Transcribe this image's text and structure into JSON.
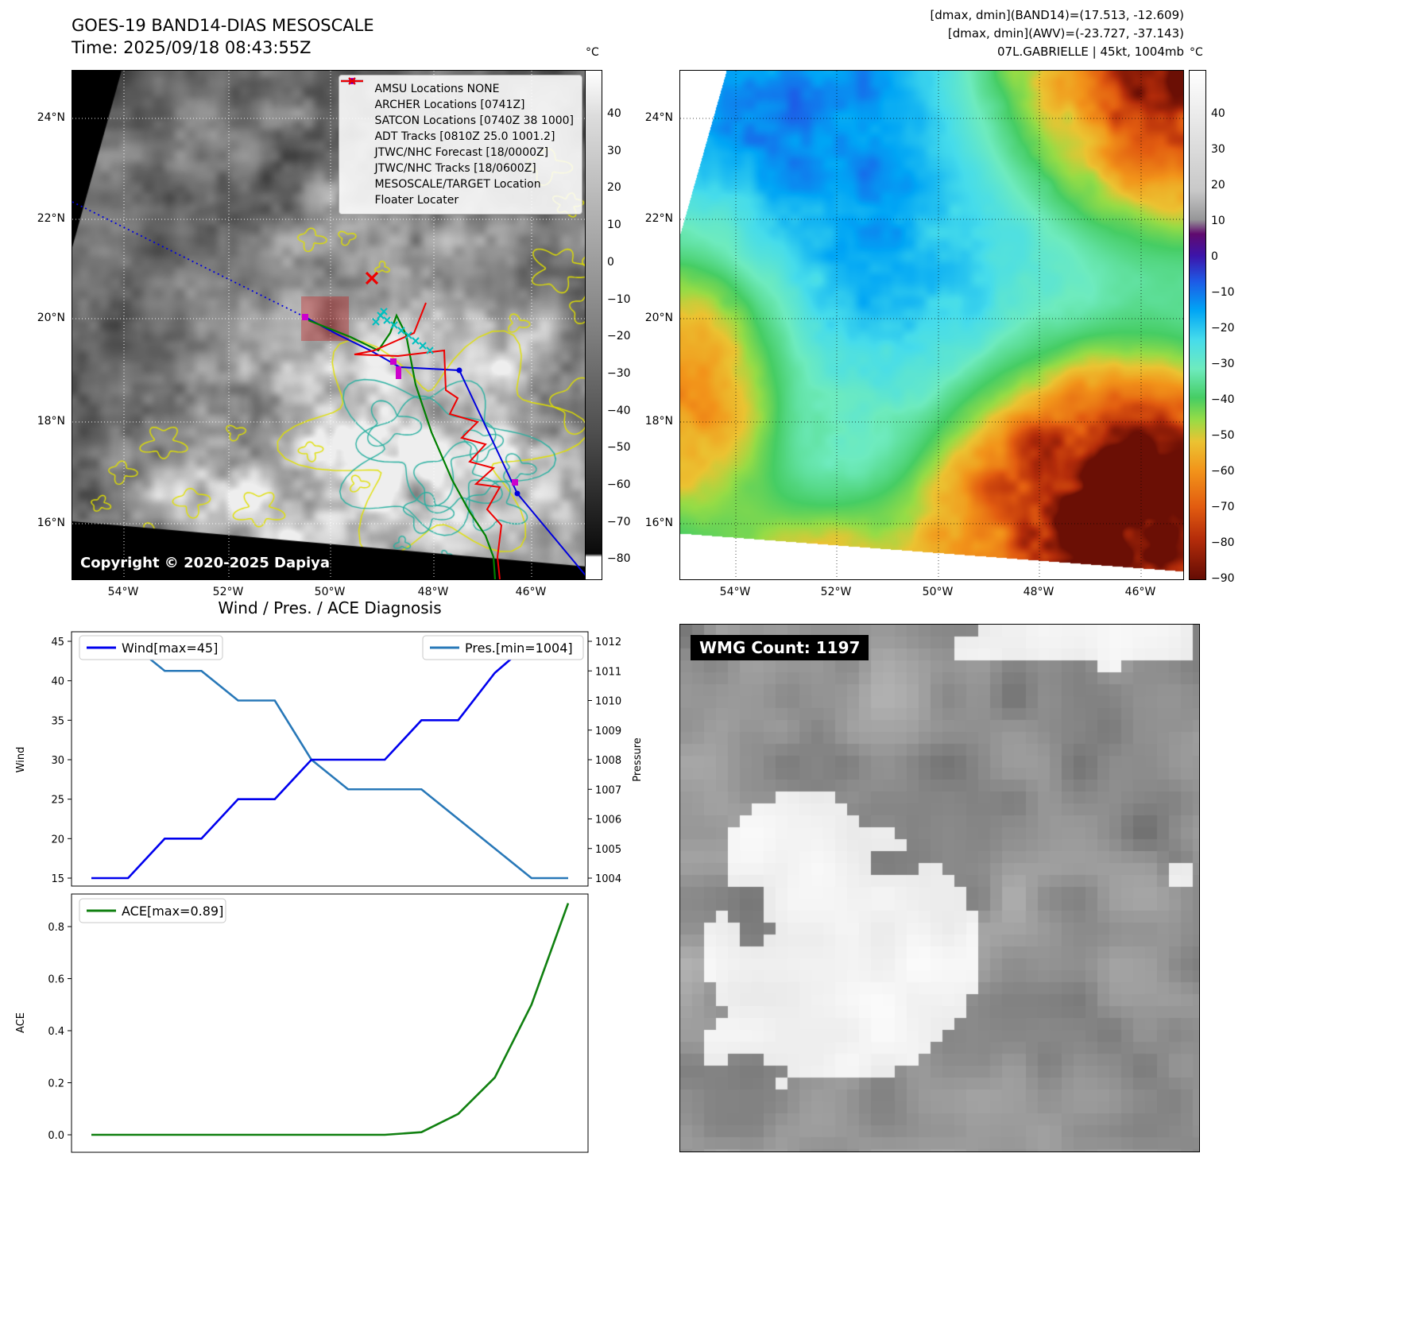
{
  "band14_map": {
    "title": "GOES-19 BAND14-DIAS MESOSCALE",
    "time_line": "Time: 2025/09/18 08:43:55Z",
    "copyright": "Copyright © 2020-2025 Dapiya",
    "lat_ticks": [
      "24°N",
      "22°N",
      "20°N",
      "18°N",
      "16°N"
    ],
    "lon_ticks": [
      "54°W",
      "52°W",
      "50°W",
      "48°W",
      "46°W"
    ],
    "colorbar": {
      "unit": "°C",
      "ticks": [
        "40",
        "30",
        "20",
        "10",
        "0",
        "−10",
        "−20",
        "−30",
        "−40",
        "−50",
        "−60",
        "−70",
        "−80"
      ]
    },
    "legend": [
      {
        "key": "amsu",
        "label": "AMSU Locations NONE",
        "marker": "square",
        "color": "#cc00cc"
      },
      {
        "key": "archer",
        "label": "ARCHER Locations [0741Z]",
        "marker": "square",
        "color": "#cc00cc"
      },
      {
        "key": "satcon",
        "label": "SATCON Locations [0740Z 38 1000]",
        "marker": "x",
        "color": "#00bfbf"
      },
      {
        "key": "adt",
        "label": "ADT Tracks [0810Z 25.0 1001.2]",
        "marker": "line",
        "color": "#008000"
      },
      {
        "key": "jtwc-forecast",
        "label": "JTWC/NHC Forecast [18/0000Z]",
        "marker": "dotted",
        "color": "#0000dd"
      },
      {
        "key": "jtwc-tracks",
        "label": "JTWC/NHC Tracks [18/0600Z]",
        "marker": "line-dot",
        "color": "#0000dd"
      },
      {
        "key": "mesoscale-target",
        "label": "MESOSCALE/TARGET Location",
        "marker": "x",
        "color": "#ee0000"
      },
      {
        "key": "floater",
        "label": "Floater Locater",
        "marker": "line",
        "color": "#ee0000"
      }
    ]
  },
  "awv_map": {
    "meta_line1": "[dmax, dmin](BAND14)=(17.513, -12.609)",
    "meta_line2": "[dmax, dmin](AWV)=(-23.727, -37.143)",
    "meta_line3": "07L.GABRIELLE | 45kt, 1004mb",
    "lat_ticks": [
      "24°N",
      "22°N",
      "20°N",
      "18°N",
      "16°N"
    ],
    "lon_ticks": [
      "54°W",
      "52°W",
      "50°W",
      "48°W",
      "46°W"
    ],
    "colorbar": {
      "unit": "°C",
      "ticks": [
        "40",
        "30",
        "20",
        "10",
        "0",
        "−10",
        "−20",
        "−30",
        "−40",
        "−50",
        "−60",
        "−70",
        "−80",
        "−90"
      ]
    }
  },
  "wmg_panel": {
    "count_label": "WMG Count: 1197"
  },
  "chart_data": [
    {
      "type": "line",
      "title": "Wind / Pres. / ACE Diagnosis",
      "ylabel": "Wind",
      "ylabel_right": "Pressure",
      "x": [
        0,
        1,
        2,
        3,
        4,
        5,
        6,
        7,
        8,
        9,
        10,
        11,
        12,
        13
      ],
      "xticklabels": [],
      "series": [
        {
          "name": "Wind[max=45]",
          "color": "#0000ee",
          "axis": "left",
          "values": [
            15,
            15,
            20,
            20,
            25,
            25,
            30,
            30,
            30,
            35,
            35,
            41,
            45,
            45
          ]
        },
        {
          "name": "Pres.[min=1004]",
          "color": "#2878b8",
          "axis": "right",
          "values": [
            1012,
            1012,
            1011,
            1011,
            1010,
            1010,
            1008,
            1007,
            1007,
            1007,
            1006,
            1005,
            1004,
            1004
          ]
        }
      ],
      "ylim": [
        15,
        45
      ],
      "ylim_right": [
        1004,
        1012
      ],
      "yticks": [
        "15",
        "20",
        "25",
        "30",
        "35",
        "40",
        "45"
      ],
      "yticks_right": [
        "1004",
        "1005",
        "1006",
        "1007",
        "1008",
        "1009",
        "1010",
        "1011",
        "1012"
      ],
      "legend_position": "upper-left and upper-right"
    },
    {
      "type": "line",
      "title": "",
      "ylabel": "ACE",
      "x": [
        0,
        1,
        2,
        3,
        4,
        5,
        6,
        7,
        8,
        9,
        10,
        11,
        12,
        13
      ],
      "xticklabels": [],
      "series": [
        {
          "name": "ACE[max=0.89]",
          "color": "#108010",
          "values": [
            0,
            0,
            0,
            0,
            0,
            0,
            0,
            0,
            0,
            0.01,
            0.08,
            0.22,
            0.5,
            0.89
          ]
        }
      ],
      "ylim": [
        0,
        0.9
      ],
      "yticks": [
        "0.0",
        "0.2",
        "0.4",
        "0.6",
        "0.8"
      ],
      "legend_position": "upper-left"
    }
  ]
}
